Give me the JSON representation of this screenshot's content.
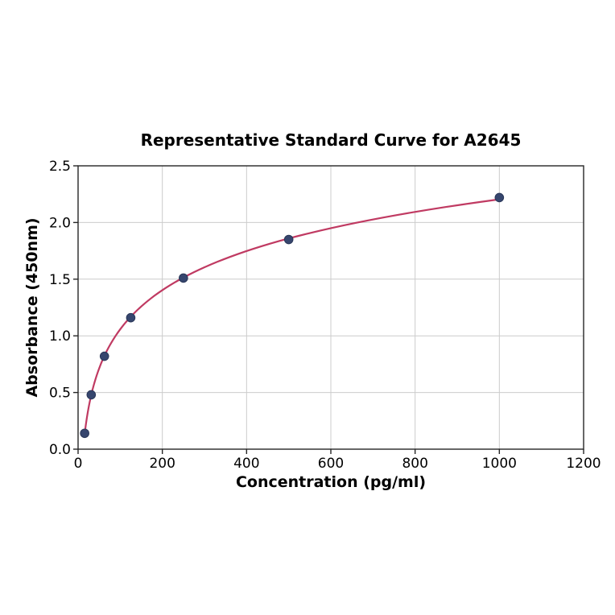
{
  "chart_data": {
    "type": "scatter",
    "fit_curve": "logarithmic",
    "title": "Representative Standard Curve for A2645",
    "xlabel": "Concentration (pg/ml)",
    "ylabel": "Absorbance (450nm)",
    "x": [
      15.6,
      31.2,
      62.5,
      125,
      250,
      500,
      1000
    ],
    "y": [
      0.14,
      0.48,
      0.82,
      1.16,
      1.51,
      1.85,
      2.22
    ],
    "xlim": [
      0,
      1200
    ],
    "ylim": [
      0,
      2.5
    ],
    "xticks": [
      0,
      200,
      400,
      600,
      800,
      1000,
      1200
    ],
    "yticks": [
      0,
      0.5,
      1.0,
      1.5,
      2.0,
      2.5
    ],
    "xtick_labels": [
      "0",
      "200",
      "400",
      "600",
      "800",
      "1000",
      "1200"
    ],
    "ytick_labels": [
      "0.0",
      "0.5",
      "1.0",
      "1.5",
      "2.0",
      "2.5"
    ],
    "grid": true,
    "legend": "none",
    "colors": {
      "line": "#c03a62",
      "marker": "#36466e",
      "marker_edge": "#2a3758",
      "grid": "#cccccc",
      "spine": "#262626",
      "text": "#000000",
      "background": "#ffffff"
    }
  }
}
